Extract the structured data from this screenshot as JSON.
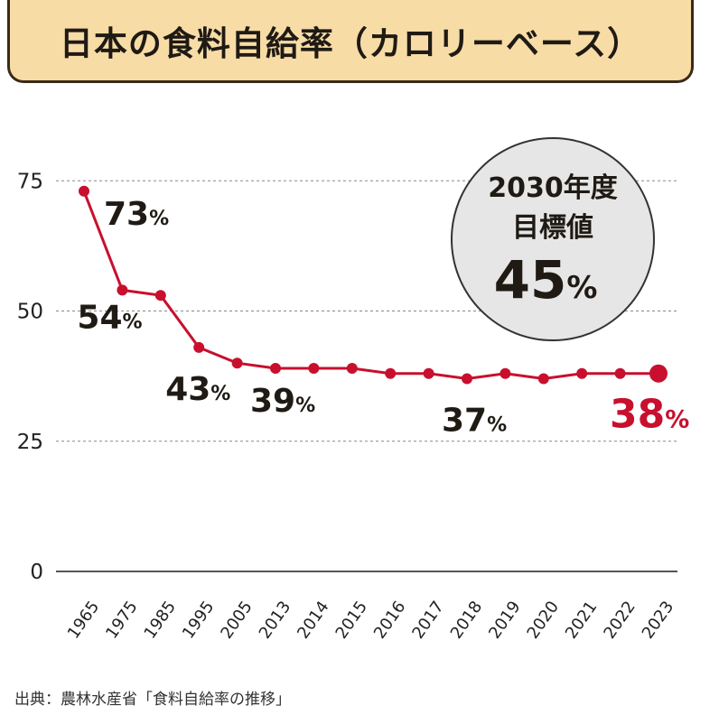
{
  "title": "日本の食料自給率（カロリーベース）",
  "source": "出典：農林水産省「食料自給率の推移」",
  "colors": {
    "line": "#c8102e",
    "text": "#1f1a14",
    "accent": "#c8102e",
    "title_bg": "#f7dca6"
  },
  "target": {
    "line1": "2030年度",
    "line2": "目標値",
    "value": "45",
    "unit": "%"
  },
  "chart_data": {
    "type": "line",
    "title": "日本の食料自給率（カロリーベース）",
    "xlabel": "",
    "ylabel": "",
    "ylim": [
      0,
      80
    ],
    "yticks": [
      0,
      25,
      50,
      75
    ],
    "categories": [
      "1965",
      "1975",
      "1985",
      "1995",
      "2005",
      "2013",
      "2014",
      "2015",
      "2016",
      "2017",
      "2018",
      "2019",
      "2020",
      "2021",
      "2022",
      "2023"
    ],
    "series": [
      {
        "name": "食料自給率",
        "values": [
          73,
          54,
          53,
          43,
          40,
          39,
          39,
          39,
          38,
          38,
          37,
          38,
          37,
          38,
          38,
          38
        ]
      }
    ],
    "labels": [
      {
        "index": 0,
        "text": "73",
        "unit": "%"
      },
      {
        "index": 1,
        "text": "54",
        "unit": "%"
      },
      {
        "index": 3,
        "text": "43",
        "unit": "%"
      },
      {
        "index": 5,
        "text": "39",
        "unit": "%"
      },
      {
        "index": 10,
        "text": "37",
        "unit": "%"
      },
      {
        "index": 15,
        "text": "38",
        "unit": "%"
      }
    ]
  }
}
